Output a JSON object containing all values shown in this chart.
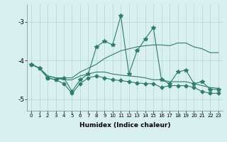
{
  "xlabel": "Humidex (Indice chaleur)",
  "x": [
    0,
    1,
    2,
    3,
    4,
    5,
    6,
    7,
    8,
    9,
    10,
    11,
    12,
    13,
    14,
    15,
    16,
    17,
    18,
    19,
    20,
    21,
    22,
    23
  ],
  "line1": [
    -4.1,
    -4.2,
    -4.45,
    -4.5,
    -4.45,
    -4.8,
    -4.5,
    -4.35,
    -3.65,
    -3.5,
    -3.6,
    -2.85,
    -4.35,
    -3.75,
    -3.45,
    -3.15,
    -4.5,
    -4.6,
    -4.3,
    -4.25,
    -4.6,
    -4.55,
    -4.75,
    -4.75
  ],
  "line2": [
    -4.1,
    -4.2,
    -4.4,
    -4.45,
    -4.45,
    -4.45,
    -4.3,
    -4.2,
    -4.1,
    -3.95,
    -3.85,
    -3.75,
    -3.7,
    -3.65,
    -3.62,
    -3.6,
    -3.6,
    -3.62,
    -3.55,
    -3.55,
    -3.65,
    -3.7,
    -3.8,
    -3.8
  ],
  "line3": [
    -4.1,
    -4.2,
    -4.4,
    -4.45,
    -4.5,
    -4.5,
    -4.4,
    -4.35,
    -4.3,
    -4.3,
    -4.35,
    -4.38,
    -4.4,
    -4.42,
    -4.45,
    -4.5,
    -4.5,
    -4.55,
    -4.55,
    -4.55,
    -4.6,
    -4.65,
    -4.7,
    -4.72
  ],
  "line4": [
    -4.1,
    -4.2,
    -4.45,
    -4.5,
    -4.6,
    -4.85,
    -4.6,
    -4.45,
    -4.4,
    -4.45,
    -4.5,
    -4.52,
    -4.55,
    -4.58,
    -4.6,
    -4.6,
    -4.7,
    -4.65,
    -4.65,
    -4.65,
    -4.7,
    -4.8,
    -4.85,
    -4.85
  ],
  "line_color": "#2d7d6e",
  "bg_color": "#d8f0f0",
  "grid_color": "#b8d4d4",
  "ylim": [
    -5.3,
    -2.55
  ],
  "yticks": [
    -5,
    -4,
    -3
  ],
  "xlim": [
    -0.5,
    23.5
  ],
  "line1_marker": "*",
  "line4_marker": "D",
  "marker_size1": 4,
  "marker_size4": 2.5
}
